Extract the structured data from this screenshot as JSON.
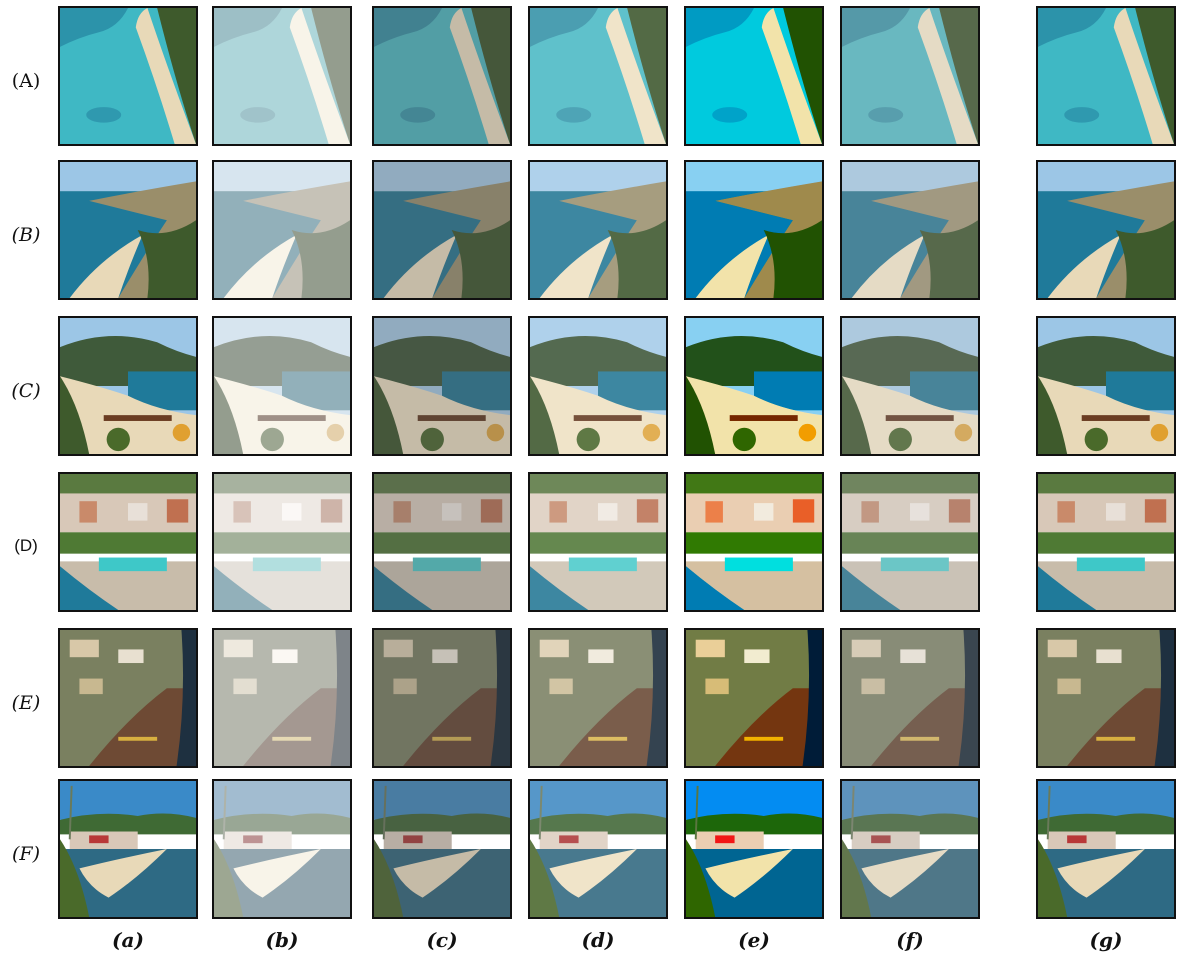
{
  "rows": [
    {
      "label": "(A)",
      "style": "sans-paren",
      "scene": "lagoon"
    },
    {
      "label": "(B)",
      "style": "italic",
      "scene": "coast"
    },
    {
      "label": "(C)",
      "style": "italic",
      "scene": "cove"
    },
    {
      "label": "(D)",
      "style": "sans",
      "scene": "town"
    },
    {
      "label": "(E)",
      "style": "italic",
      "scene": "cliffs"
    },
    {
      "label": "(F)",
      "style": "italic",
      "scene": "bay"
    }
  ],
  "columns": [
    {
      "label": "(a)",
      "treatment": "original"
    },
    {
      "label": "(b)",
      "treatment": "hazy"
    },
    {
      "label": "(c)",
      "treatment": "dim"
    },
    {
      "label": "(d)",
      "treatment": "bright-flat"
    },
    {
      "label": "(e)",
      "treatment": "vivid"
    },
    {
      "label": "(f)",
      "treatment": "soft"
    },
    {
      "label": "(g)",
      "treatment": "original"
    }
  ],
  "colors": {
    "sea": "#3fb8c4",
    "sea_deep": "#1f7a9a",
    "sand": "#e8d9b8",
    "vegetation": "#3e5a2c",
    "sky": "#9cc6e6",
    "town": "#d8c8b8",
    "border": "#111111"
  }
}
